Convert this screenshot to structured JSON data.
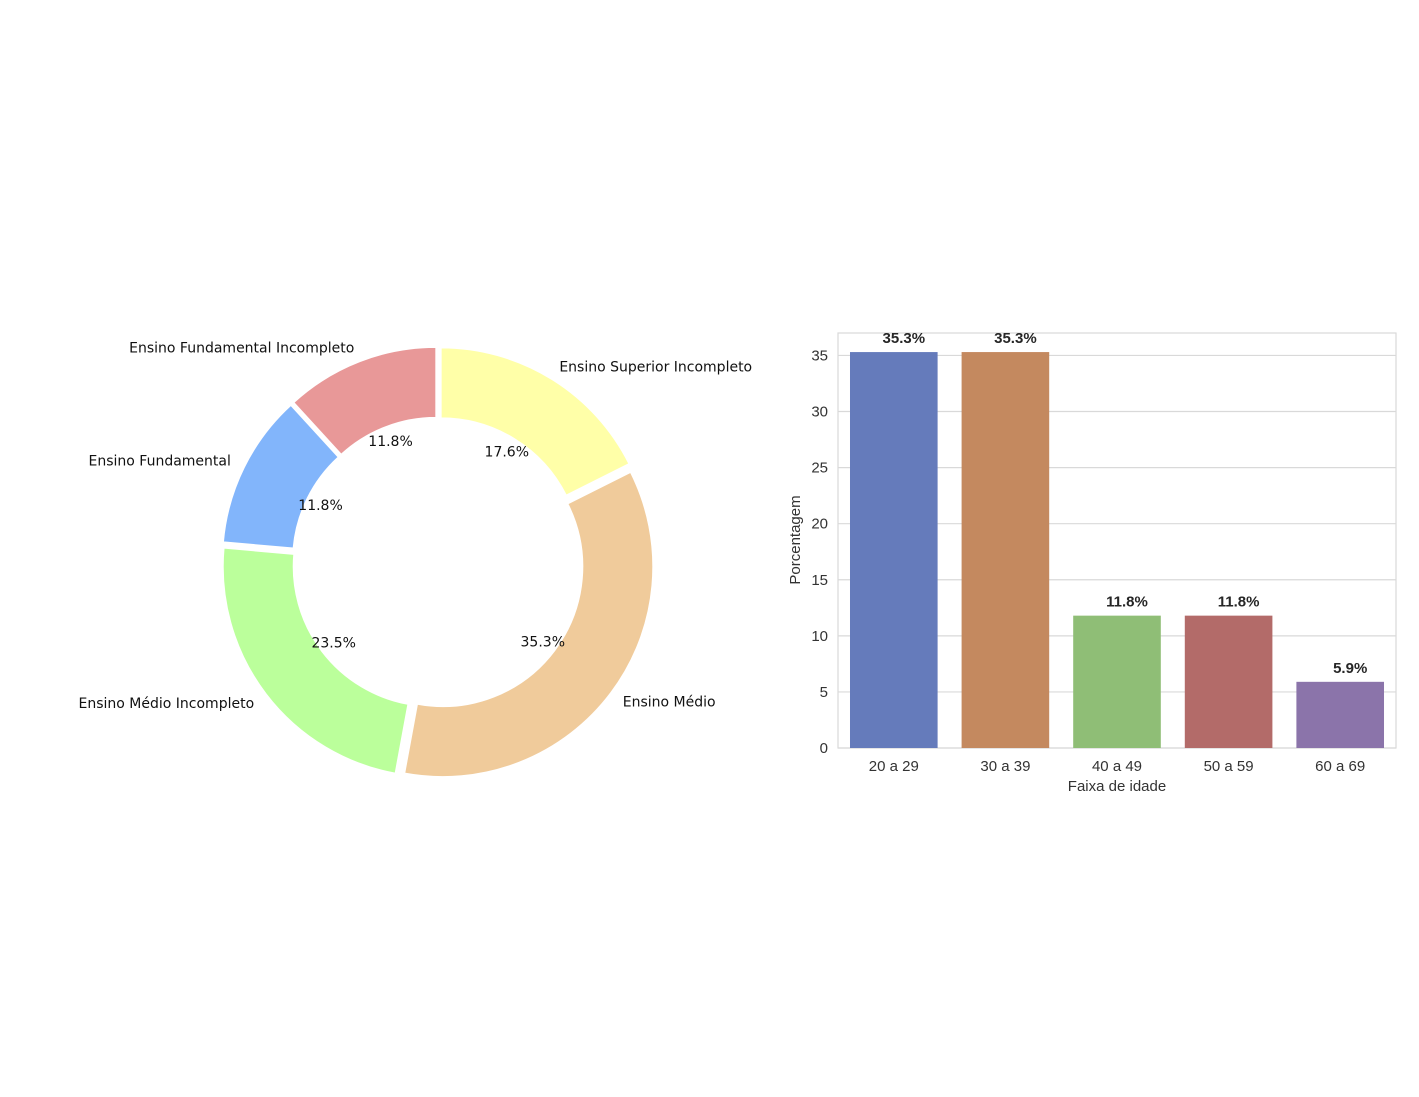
{
  "chart_data": [
    {
      "type": "pie",
      "variant": "donut",
      "title": "",
      "slices": [
        {
          "label": "Ensino Superior Incompleto",
          "value": 17.6,
          "pct_label": "17.6%",
          "color": "#ffffa8"
        },
        {
          "label": "Ensino Médio",
          "value": 35.3,
          "pct_label": "35.3%",
          "color": "#f0cb9b"
        },
        {
          "label": "Ensino Médio Incompleto",
          "value": 23.5,
          "pct_label": "23.5%",
          "color": "#bbff9b"
        },
        {
          "label": "Ensino Fundamental",
          "value": 11.8,
          "pct_label": "11.8%",
          "color": "#82b5fb"
        },
        {
          "label": "Ensino Fundamental Incompleto",
          "value": 11.8,
          "pct_label": "11.8%",
          "color": "#e89898"
        }
      ]
    },
    {
      "type": "bar",
      "title": "",
      "xlabel": "Faixa de idade",
      "ylabel": "Porcentagem",
      "categories": [
        "20 a 29",
        "30 a 39",
        "40 a 49",
        "50 a 59",
        "60 a 69"
      ],
      "values": [
        35.3,
        35.3,
        11.8,
        11.8,
        5.9
      ],
      "value_labels": [
        "35.3%",
        "35.3%",
        "11.8%",
        "11.8%",
        "5.9%"
      ],
      "colors": [
        "#657bbb",
        "#c4895f",
        "#8fbe76",
        "#b36b69",
        "#8b74aa"
      ],
      "ylim": [
        0,
        37
      ],
      "yticks": [
        0,
        5,
        10,
        15,
        20,
        25,
        30,
        35
      ],
      "grid": true
    }
  ]
}
